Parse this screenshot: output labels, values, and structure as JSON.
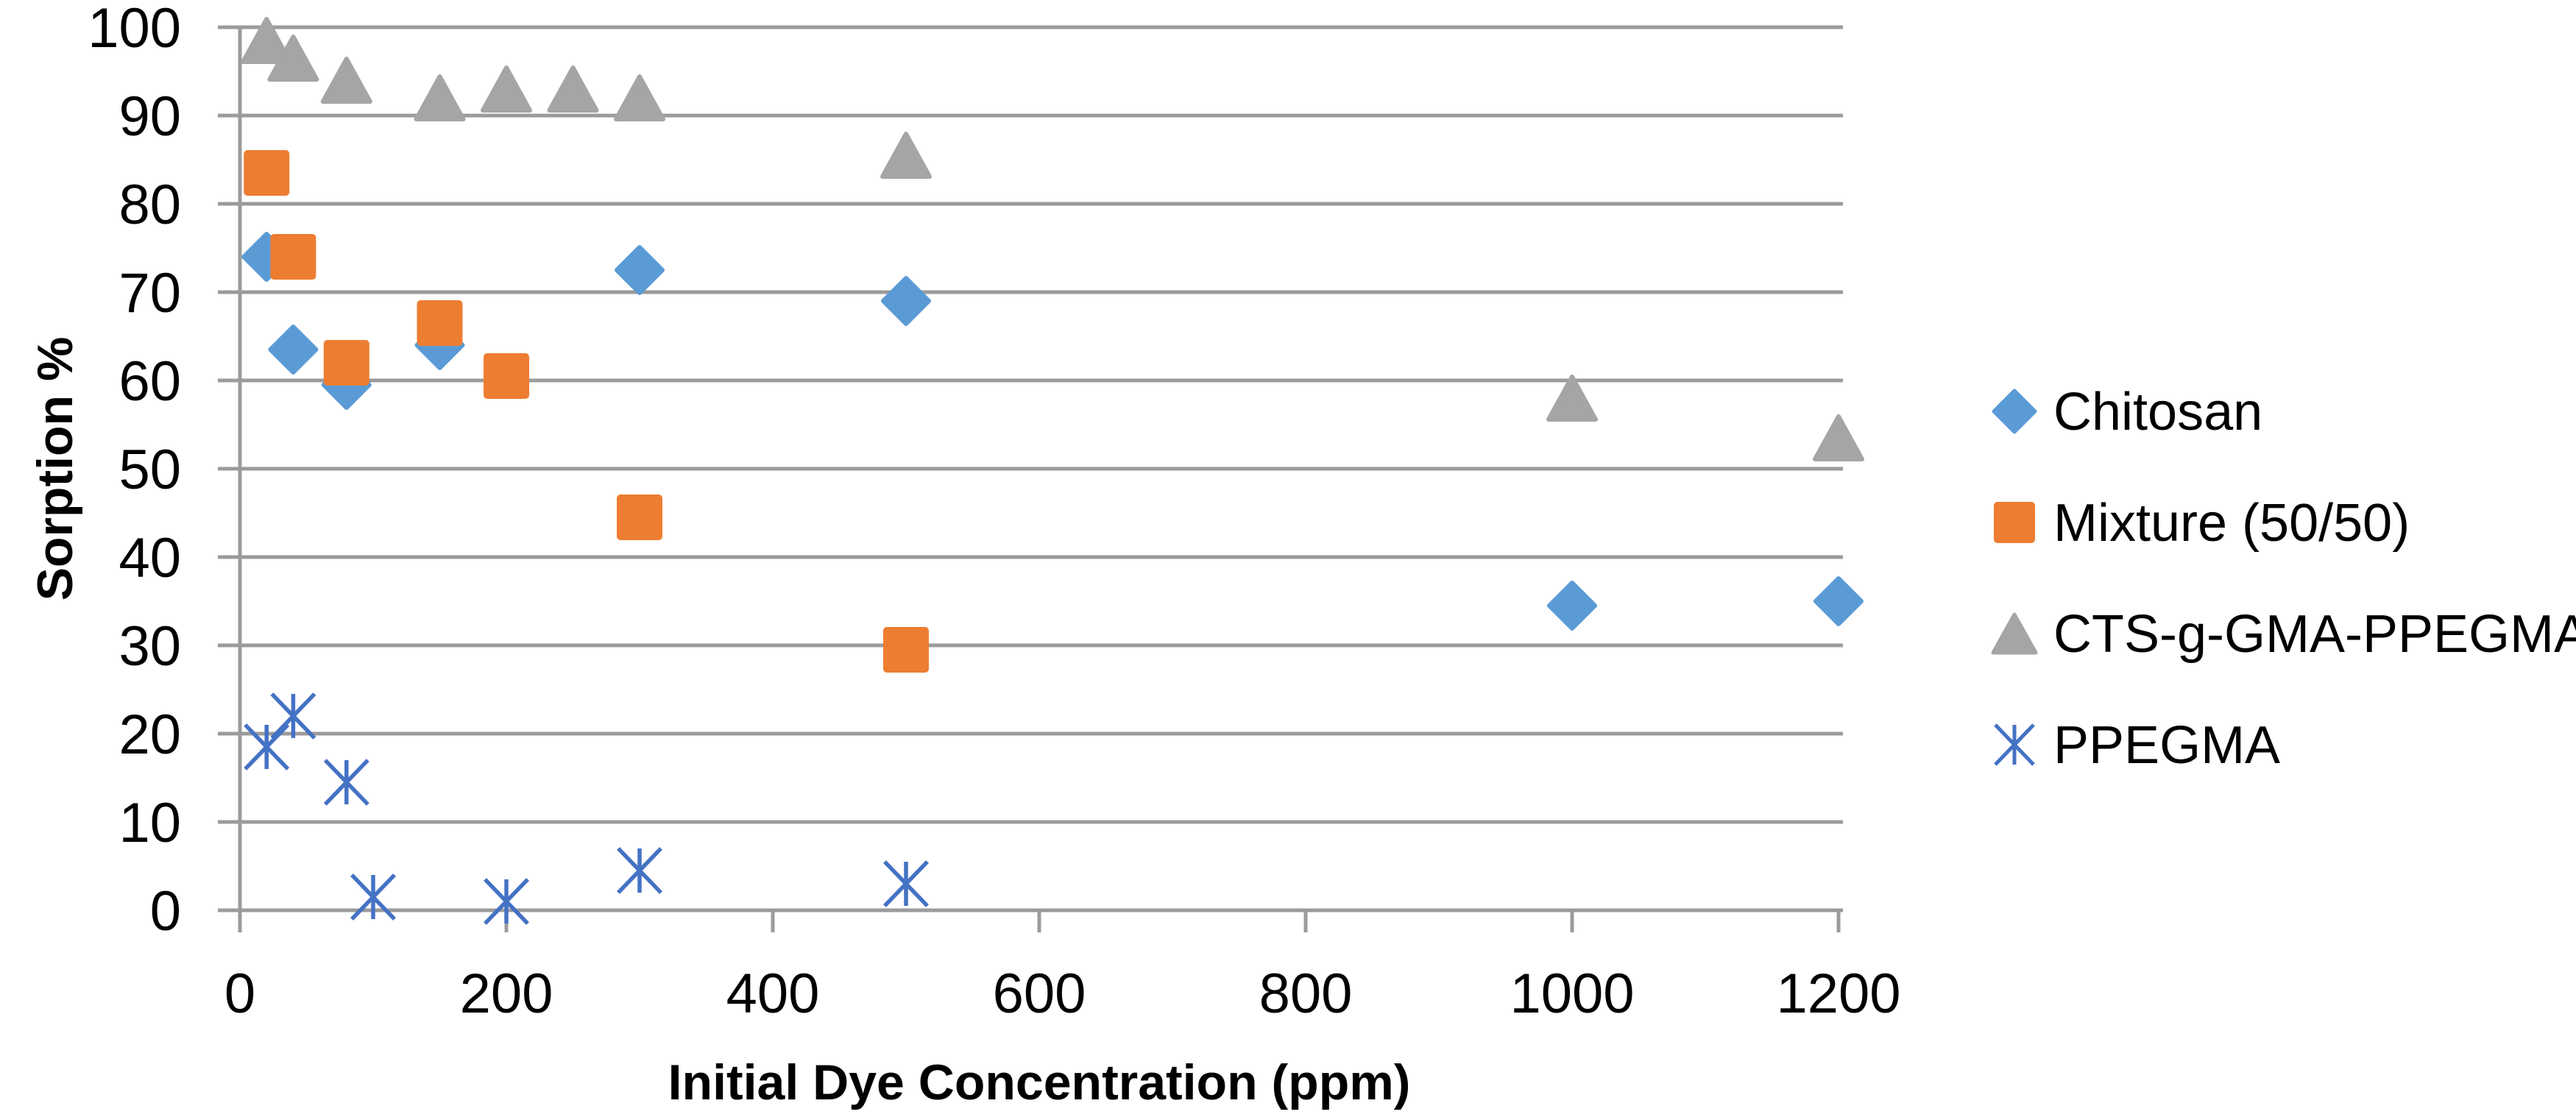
{
  "chart_data": {
    "type": "scatter",
    "title": "",
    "xlabel": "Initial Dye Concentration (ppm)",
    "ylabel": "Sorption %",
    "xlim": [
      0,
      1200
    ],
    "ylim": [
      0,
      100
    ],
    "x_ticks": [
      0,
      200,
      400,
      600,
      800,
      1000,
      1200
    ],
    "y_ticks": [
      0,
      10,
      20,
      30,
      40,
      50,
      60,
      70,
      80,
      90,
      100
    ],
    "grid": "horizontal-only",
    "legend_position": "right",
    "series": [
      {
        "name": "Chitosan",
        "marker": "diamond",
        "color": "#5B9BD5",
        "points": [
          [
            20,
            74
          ],
          [
            40,
            63.5
          ],
          [
            80,
            59.5
          ],
          [
            150,
            64
          ],
          [
            300,
            72.5
          ],
          [
            500,
            69
          ],
          [
            1000,
            34.5
          ],
          [
            1200,
            35
          ]
        ]
      },
      {
        "name": "Mixture (50/50)",
        "marker": "square",
        "color": "#ED7D31",
        "points": [
          [
            20,
            83.5
          ],
          [
            40,
            74
          ],
          [
            80,
            62
          ],
          [
            150,
            66.5
          ],
          [
            200,
            60.5
          ],
          [
            300,
            44.5
          ],
          [
            500,
            29.5
          ]
        ]
      },
      {
        "name": "CTS-g-GMA-PPEGMA",
        "marker": "triangle",
        "color": "#A5A5A5",
        "points": [
          [
            20,
            98.5
          ],
          [
            40,
            96.5
          ],
          [
            80,
            94
          ],
          [
            150,
            92
          ],
          [
            200,
            93
          ],
          [
            250,
            93
          ],
          [
            300,
            92
          ],
          [
            500,
            85.5
          ],
          [
            1000,
            58
          ],
          [
            1200,
            53.5
          ]
        ]
      },
      {
        "name": "PPEGMA",
        "marker": "asterisk",
        "color": "#4472C4",
        "points": [
          [
            20,
            18.5
          ],
          [
            40,
            22
          ],
          [
            80,
            14.5
          ],
          [
            100,
            1.5
          ],
          [
            200,
            1
          ],
          [
            300,
            4.5
          ],
          [
            500,
            3
          ]
        ]
      }
    ],
    "styles": {
      "grid_color": "#9B9B9B",
      "axis_color": "#9B9B9B",
      "text_color": "#000000"
    }
  }
}
